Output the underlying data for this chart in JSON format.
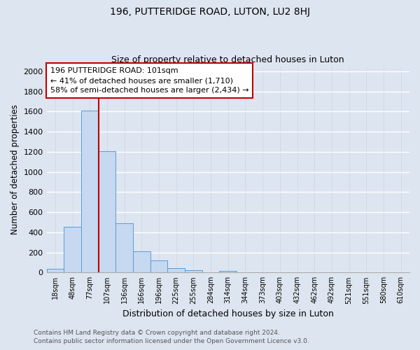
{
  "title_line1": "196, PUTTERIDGE ROAD, LUTON, LU2 8HJ",
  "title_line2": "Size of property relative to detached houses in Luton",
  "xlabel": "Distribution of detached houses by size in Luton",
  "ylabel": "Number of detached properties",
  "bin_labels": [
    "18sqm",
    "48sqm",
    "77sqm",
    "107sqm",
    "136sqm",
    "166sqm",
    "196sqm",
    "225sqm",
    "255sqm",
    "284sqm",
    "314sqm",
    "344sqm",
    "373sqm",
    "403sqm",
    "432sqm",
    "462sqm",
    "492sqm",
    "521sqm",
    "551sqm",
    "580sqm",
    "610sqm"
  ],
  "bar_heights": [
    35,
    455,
    1610,
    1205,
    490,
    210,
    120,
    45,
    20,
    0,
    15,
    0,
    0,
    0,
    0,
    0,
    0,
    0,
    0,
    0,
    0
  ],
  "bar_color": "#c6d9f0",
  "bar_edge_color": "#5b9bd5",
  "vline_x": 3.0,
  "vline_color": "#c00000",
  "ylim": [
    0,
    2050
  ],
  "yticks": [
    0,
    200,
    400,
    600,
    800,
    1000,
    1200,
    1400,
    1600,
    1800,
    2000
  ],
  "annotation_title": "196 PUTTERIDGE ROAD: 101sqm",
  "annotation_line2": "← 41% of detached houses are smaller (1,710)",
  "annotation_line3": "58% of semi-detached houses are larger (2,434) →",
  "footer_line1": "Contains HM Land Registry data © Crown copyright and database right 2024.",
  "footer_line2": "Contains public sector information licensed under the Open Government Licence v3.0.",
  "background_color": "#dde5f0",
  "plot_bg_color": "#dde5f0",
  "grid_color": "#c8d4e8",
  "footer_color": "#555555"
}
